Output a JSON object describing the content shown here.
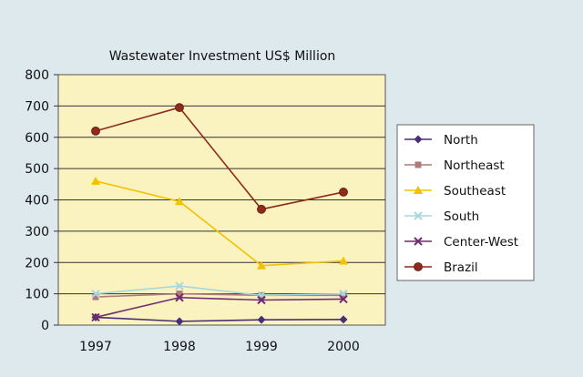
{
  "chart_data": {
    "type": "line",
    "title": "Wastewater Investment US$ Million",
    "x": [
      "1997",
      "1998",
      "1999",
      "2000"
    ],
    "ylim": [
      0,
      800
    ],
    "yticks": [
      0,
      100,
      200,
      300,
      400,
      500,
      600,
      700,
      800
    ],
    "grid": true,
    "legend_position": "right",
    "series": [
      {
        "name": "North",
        "values": [
          25,
          12,
          17,
          18
        ],
        "color": "#4b2c79",
        "marker": "diamond"
      },
      {
        "name": "Northeast",
        "values": [
          90,
          100,
          95,
          95
        ],
        "color": "#b07a7a",
        "marker": "square"
      },
      {
        "name": "Southeast",
        "values": [
          460,
          395,
          190,
          205
        ],
        "color": "#f2c200",
        "marker": "triangle"
      },
      {
        "name": "South",
        "values": [
          100,
          125,
          95,
          100
        ],
        "color": "#a6d7dc",
        "marker": "x"
      },
      {
        "name": "Center-West",
        "values": [
          25,
          88,
          80,
          83
        ],
        "color": "#6f2c6f",
        "marker": "x"
      },
      {
        "name": "Brazil",
        "values": [
          620,
          695,
          370,
          425
        ],
        "color": "#8f2a1c",
        "marker": "circle"
      }
    ]
  }
}
